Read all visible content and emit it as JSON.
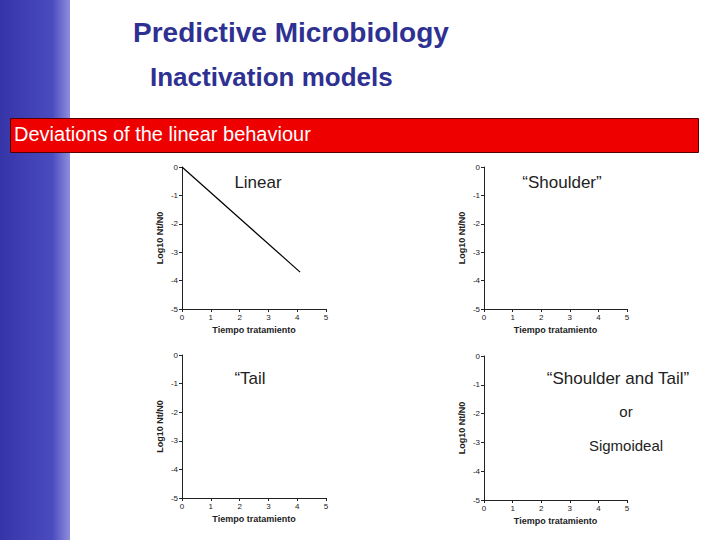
{
  "slide": {
    "title": "Predictive Microbiology",
    "subtitle": "Inactivation models",
    "banner": "Deviations of the linear behaviour"
  },
  "chart_data": [
    {
      "type": "line",
      "title": "Linear",
      "x_label": "Tiempo tratamiento",
      "y_label": "Log10 Nt/N0",
      "xlim": [
        0,
        5
      ],
      "xticks": [
        0,
        1,
        2,
        3,
        4,
        5
      ],
      "ylim": [
        -5,
        0
      ],
      "yticks": [
        -5,
        -4,
        -3,
        -2,
        -1,
        0
      ],
      "grid": false,
      "series": [
        {
          "x": [
            0,
            4.1
          ],
          "values": [
            0,
            -3.7
          ],
          "color": "#000000"
        }
      ]
    },
    {
      "type": "line",
      "title": "“Shoulder”",
      "x_label": "Tiempo tratamiento",
      "y_label": "Log10 Nt/N0",
      "xlim": [
        0,
        5
      ],
      "xticks": [
        0,
        1,
        2,
        3,
        4,
        5
      ],
      "ylim": [
        -5,
        0
      ],
      "yticks": [
        -5,
        -4,
        -3,
        -2,
        -1,
        0
      ],
      "grid": false,
      "series": []
    },
    {
      "type": "line",
      "title": "“Tail",
      "x_label": "Tiempo tratamiento",
      "y_label": "Log10 Nt/N0",
      "xlim": [
        0,
        5
      ],
      "xticks": [
        0,
        1,
        2,
        3,
        4,
        5
      ],
      "ylim": [
        -5,
        0
      ],
      "yticks": [
        -5,
        -4,
        -3,
        -2,
        -1,
        0
      ],
      "grid": false,
      "series": []
    },
    {
      "type": "line",
      "title": "“Shoulder and Tail”",
      "annotations": [
        "or",
        "Sigmoideal"
      ],
      "x_label": "Tiempo tratamiento",
      "y_label": "Log10 Nt/N0",
      "xlim": [
        0,
        5
      ],
      "xticks": [
        0,
        1,
        2,
        3,
        4,
        5
      ],
      "ylim": [
        -5,
        0
      ],
      "yticks": [
        -5,
        -4,
        -3,
        -2,
        -1,
        0
      ],
      "grid": false,
      "series": []
    }
  ]
}
